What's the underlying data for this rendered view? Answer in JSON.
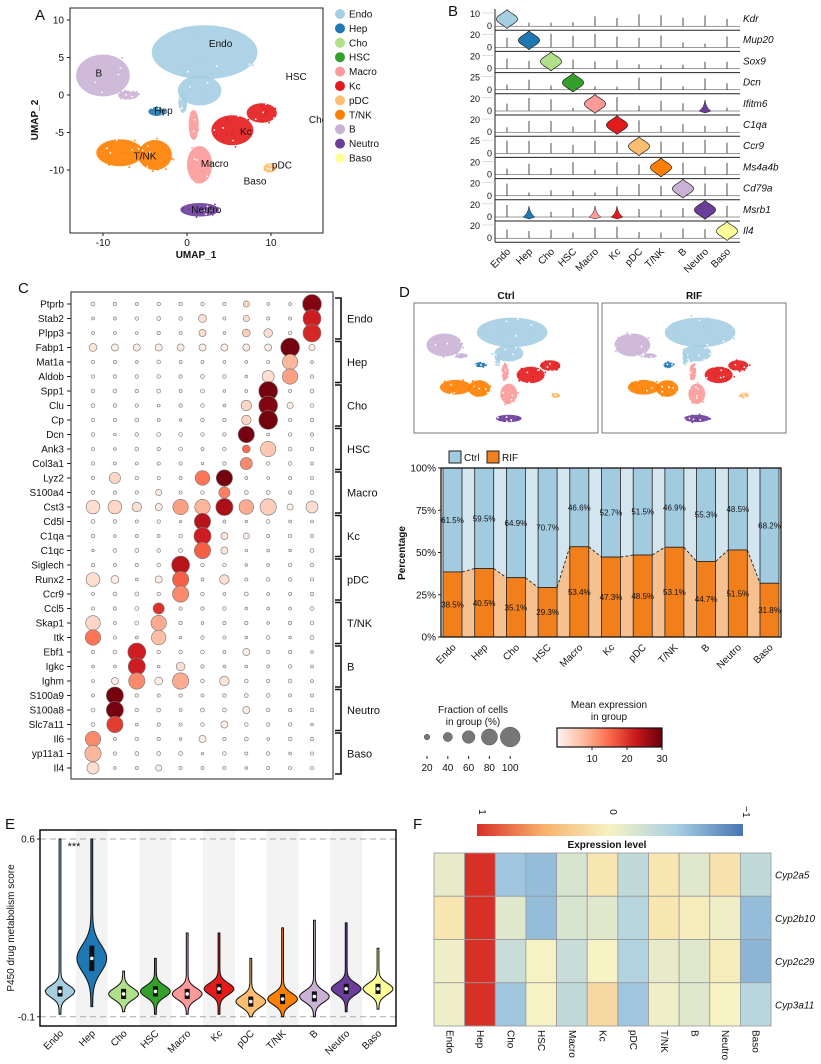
{
  "panel_labels": {
    "A": "A",
    "B": "B",
    "C": "C",
    "D": "D",
    "E": "E",
    "F": "F"
  },
  "cell_types": [
    "Endo",
    "Hep",
    "Cho",
    "HSC",
    "Macro",
    "Kc",
    "pDC",
    "T/NK",
    "B",
    "Neutro",
    "Baso"
  ],
  "colors": {
    "Endo": "#a6cee3",
    "Hep": "#1f78b4",
    "Cho": "#b2df8a",
    "HSC": "#33a02c",
    "Macro": "#fb9a99",
    "Kc": "#e31a1c",
    "pDC": "#fdbf6f",
    "T/NK": "#ff7f00",
    "B": "#cab2d6",
    "Neutro": "#6a3d9a",
    "Baso": "#ffff99",
    "ctrl": "#a3cbe0",
    "ctrl_light": "#d3e6ef",
    "rif": "#f07f1c",
    "rif_light": "#f6c08f"
  },
  "chart_data": [
    {
      "panel": "A",
      "type": "scatter",
      "xlabel": "UMAP_1",
      "ylabel": "UMAP_2",
      "xticks": [
        -10,
        0,
        10
      ],
      "yticks": [
        10,
        5,
        0,
        -5,
        -10
      ],
      "xlim": [
        -14,
        16.2
      ],
      "ylim": [
        -18.4,
        11.6
      ],
      "legend": [
        "Endo",
        "Hep",
        "Cho",
        "HSC",
        "Macro",
        "Kc",
        "pDC",
        "T/NK",
        "B",
        "Neutro",
        "Baso"
      ],
      "legend_position": "right",
      "clusters": [
        {
          "name": "Endo",
          "blobs": [
            [
              2.1,
              5.7,
              6.3,
              3.6
            ],
            [
              1.5,
              0.6,
              2.6,
              2.0
            ],
            [
              -0.5,
              -1,
              0.5,
              1.4
            ]
          ]
        },
        {
          "name": "B",
          "blobs": [
            [
              -10,
              2.6,
              3.2,
              2.8
            ],
            [
              -7,
              0,
              1.2,
              0.6
            ]
          ]
        },
        {
          "name": "Hep",
          "blobs": [
            [
              -3.6,
              -2.2,
              1.0,
              0.6
            ]
          ]
        },
        {
          "name": "Kc",
          "blobs": [
            [
              5.4,
              -4.7,
              2.5,
              2.0
            ],
            [
              8.9,
              -2.4,
              1.8,
              1.3
            ]
          ]
        },
        {
          "name": "T/NK",
          "blobs": [
            [
              -8,
              -7.7,
              2.8,
              1.8
            ],
            [
              -3.8,
              -8,
              2.0,
              2.0
            ]
          ]
        },
        {
          "name": "Macro",
          "blobs": [
            [
              1.5,
              -9.3,
              1.5,
              2.5
            ],
            [
              0.8,
              -4,
              0.6,
              2.0
            ]
          ]
        },
        {
          "name": "pDC",
          "blobs": [
            [
              9.9,
              -9.7,
              0.8,
              0.6
            ]
          ]
        },
        {
          "name": "Neutro",
          "blobs": [
            [
              1.5,
              -15.3,
              2.3,
              0.9
            ]
          ]
        }
      ],
      "cluster_labels": [
        {
          "text": "Endo",
          "x": 4,
          "y": 6.4
        },
        {
          "text": "B",
          "x": -10.5,
          "y": 2.5
        },
        {
          "text": "Hep",
          "x": -2.8,
          "y": -2.5
        },
        {
          "text": "HSC",
          "x": 13,
          "y": 2
        },
        {
          "text": "Kc",
          "x": 7,
          "y": -5.3
        },
        {
          "text": "Cho",
          "x": 15.6,
          "y": -3.7
        },
        {
          "text": "T/NK",
          "x": -5,
          "y": -8.6
        },
        {
          "text": "Macro",
          "x": 3.3,
          "y": -9.6
        },
        {
          "text": "pDC",
          "x": 11.3,
          "y": -9.8
        },
        {
          "text": "Baso",
          "x": 8.1,
          "y": -11.9
        },
        {
          "text": "Neutro",
          "x": 2.3,
          "y": -15.7
        }
      ]
    },
    {
      "panel": "B",
      "type": "stacked-violin",
      "categories": [
        "Endo",
        "Hep",
        "Cho",
        "HSC",
        "Macro",
        "Kc",
        "pDC",
        "T/NK",
        "B",
        "Neutro",
        "Baso"
      ],
      "genes": [
        {
          "gene": "Kdr",
          "ytick_top": "10",
          "ytick_zero": "0",
          "main": "Endo",
          "others": []
        },
        {
          "gene": "Mup20",
          "ytick_top": "20",
          "ytick_zero": "0",
          "main": "Hep",
          "others": []
        },
        {
          "gene": "Sox9",
          "ytick_top": "20",
          "ytick_zero": "0",
          "main": "Cho",
          "others": []
        },
        {
          "gene": "Dcn",
          "ytick_top": "25",
          "ytick_zero": "0",
          "main": "HSC",
          "others": []
        },
        {
          "gene": "Ifitm6",
          "ytick_top": "20",
          "ytick_zero": "0",
          "main": "Macro",
          "others": [
            "Neutro"
          ]
        },
        {
          "gene": "C1qa",
          "ytick_top": "20",
          "ytick_zero": "0",
          "main": "Kc",
          "others": []
        },
        {
          "gene": "Ccr9",
          "ytick_top": "25",
          "ytick_zero": "0",
          "main": "pDC",
          "others": []
        },
        {
          "gene": "Ms4a4b",
          "ytick_top": "20",
          "ytick_zero": "0",
          "main": "T/NK",
          "others": []
        },
        {
          "gene": "Cd79a",
          "ytick_top": "20",
          "ytick_zero": "0",
          "main": "B",
          "others": []
        },
        {
          "gene": "Msrb1",
          "ytick_top": "20",
          "ytick_zero": "0",
          "main": "Neutro",
          "others": [
            "Hep",
            "Macro",
            "Kc"
          ]
        },
        {
          "gene": "Il4",
          "ytick_top": "20",
          "ytick_zero": "0",
          "main": "Baso",
          "others": []
        }
      ]
    },
    {
      "panel": "C",
      "type": "dotplot",
      "genes": [
        "Ptprb",
        "Stab2",
        "Plpp3",
        "Fabp1",
        "Mat1a",
        "Aldob",
        "Spp1",
        "Clu",
        "Cp",
        "Dcn",
        "Ank3",
        "Col3a1",
        "Lyz2",
        "S100a4",
        "Cst3",
        "Cd5l",
        "C1qa",
        "C1qc",
        "Siglech",
        "Runx2",
        "Ccr9",
        "Ccl5",
        "Skap1",
        "Itk",
        "Ebf1",
        "Igkc",
        "Ighm",
        "S100a9",
        "S100a8",
        "Slc7a11",
        "Il6",
        "yp11a1",
        "Il4"
      ],
      "groups": [
        "Endo",
        "Hep",
        "Cho",
        "HSC",
        "Macro",
        "Kc",
        "pDC",
        "T/NK",
        "B",
        "Neutro",
        "Baso"
      ],
      "n_columns": 11,
      "default_dot": {
        "fraction": 10,
        "expression": 1
      },
      "dots": {
        "Ptprb": [
          [
            10,
            100,
            28
          ],
          [
            7,
            25,
            4
          ]
        ],
        "Stab2": [
          [
            10,
            95,
            22
          ],
          [
            5,
            35,
            3
          ],
          [
            7,
            25,
            3
          ]
        ],
        "Plpp3": [
          [
            10,
            95,
            21
          ],
          [
            5,
            30,
            3
          ],
          [
            7,
            35,
            5
          ],
          [
            8,
            40,
            3
          ]
        ],
        "Fabp1": [
          [
            9,
            100,
            29
          ],
          [
            0,
            35,
            2
          ],
          [
            1,
            30,
            1
          ],
          [
            2,
            30,
            1
          ],
          [
            3,
            30,
            1
          ],
          [
            4,
            30,
            1
          ],
          [
            5,
            30,
            1
          ],
          [
            6,
            30,
            1
          ],
          [
            7,
            30,
            1
          ],
          [
            8,
            30,
            1
          ],
          [
            10,
            25,
            1
          ]
        ],
        "Mat1a": [
          [
            9,
            80,
            8
          ]
        ],
        "Aldob": [
          [
            9,
            80,
            10
          ],
          [
            8,
            60,
            3
          ]
        ],
        "Spp1": [
          [
            8,
            100,
            29
          ]
        ],
        "Clu": [
          [
            8,
            100,
            28
          ],
          [
            7,
            50,
            4
          ],
          [
            9,
            25,
            1
          ]
        ],
        "Cp": [
          [
            8,
            100,
            29
          ],
          [
            7,
            45,
            4
          ]
        ],
        "Dcn": [
          [
            7,
            85,
            29
          ]
        ],
        "Ank3": [
          [
            7,
            35,
            15
          ],
          [
            8,
            80,
            6
          ]
        ],
        "Col3a1": [
          [
            7,
            60,
            12
          ]
        ],
        "Lyz2": [
          [
            6,
            85,
            29
          ],
          [
            5,
            75,
            14
          ],
          [
            1,
            55,
            4
          ]
        ],
        "S100a4": [
          [
            6,
            55,
            13
          ],
          [
            3,
            25,
            1
          ]
        ],
        "Cst3": [
          [
            6,
            90,
            25
          ],
          [
            5,
            80,
            8
          ],
          [
            4,
            80,
            10
          ],
          [
            7,
            75,
            9
          ],
          [
            8,
            85,
            5
          ],
          [
            0,
            70,
            3
          ],
          [
            1,
            70,
            4
          ],
          [
            2,
            45,
            3
          ],
          [
            10,
            60,
            3
          ],
          [
            3,
            30,
            1
          ],
          [
            9,
            25,
            1
          ]
        ],
        "Cd5l": [
          [
            5,
            85,
            24
          ]
        ],
        "C1qa": [
          [
            5,
            90,
            22
          ],
          [
            6,
            30,
            2
          ],
          [
            7,
            25,
            1
          ]
        ],
        "C1qc": [
          [
            5,
            85,
            16
          ],
          [
            6,
            30,
            2
          ]
        ],
        "Siglech": [
          [
            4,
            95,
            24
          ]
        ],
        "Runx2": [
          [
            4,
            85,
            16
          ],
          [
            0,
            70,
            3
          ],
          [
            1,
            35,
            1
          ],
          [
            6,
            45,
            3
          ],
          [
            3,
            30,
            1
          ]
        ],
        "Ccr9": [
          [
            4,
            85,
            12
          ]
        ],
        "Ccl5": [
          [
            3,
            55,
            20
          ]
        ],
        "Skap1": [
          [
            3,
            80,
            9
          ],
          [
            0,
            75,
            4
          ]
        ],
        "Itk": [
          [
            3,
            75,
            7
          ],
          [
            0,
            80,
            14
          ]
        ],
        "Ebf1": [
          [
            2,
            95,
            22
          ],
          [
            7,
            30,
            1
          ]
        ],
        "Igkc": [
          [
            2,
            90,
            22
          ],
          [
            4,
            40,
            3
          ]
        ],
        "Ighm": [
          [
            2,
            85,
            12
          ],
          [
            4,
            85,
            9
          ],
          [
            6,
            45,
            2
          ],
          [
            3,
            35,
            1
          ],
          [
            1,
            30,
            1
          ]
        ],
        "S100a9": [
          [
            1,
            90,
            29
          ]
        ],
        "S100a8": [
          [
            1,
            90,
            29
          ],
          [
            7,
            30,
            1
          ]
        ],
        "Slc7a11": [
          [
            1,
            85,
            19
          ],
          [
            6,
            30,
            1
          ]
        ],
        "Il6": [
          [
            0,
            80,
            12
          ],
          [
            5,
            30,
            1
          ]
        ],
        "yp11a1": [
          [
            0,
            85,
            8
          ]
        ],
        "Il4": [
          [
            0,
            60,
            3
          ],
          [
            3,
            25,
            1
          ]
        ]
      },
      "size_legend": {
        "title_line1": "Fraction of cells",
        "title_line2": "in group (%)",
        "values": [
          20,
          40,
          60,
          80,
          100
        ],
        "labels": [
          "20",
          "40",
          "60",
          "80",
          "100"
        ]
      },
      "color_legend": {
        "title_line1": "Mean expression",
        "title_line2": "in group",
        "range": [
          0,
          30
        ],
        "ticks": [
          10,
          20,
          30
        ],
        "labels": [
          "10",
          "20",
          "30"
        ]
      }
    },
    {
      "panel": "D-umap",
      "type": "scatter",
      "titles": [
        "Ctrl",
        "RIF"
      ]
    },
    {
      "panel": "D",
      "type": "bar",
      "stacked": true,
      "categories": [
        "Endo",
        "Hep",
        "Cho",
        "HSC",
        "Macro",
        "Kc",
        "pDC",
        "T/NK",
        "B",
        "Neutro",
        "Baso"
      ],
      "ylabel": "Percentage",
      "yticks": [
        "0%",
        "25%",
        "50%",
        "75%",
        "100%"
      ],
      "ylim": [
        0,
        100
      ],
      "legend_position": "top-left",
      "series": [
        {
          "name": "Ctrl",
          "values": [
            61.5,
            59.5,
            64.9,
            70.7,
            46.6,
            52.7,
            51.5,
            46.9,
            55.3,
            48.5,
            68.2
          ],
          "labels": [
            "61.5%",
            "59.5%",
            "64.9%",
            "70.7%",
            "46.6%",
            "52.7%",
            "51.5%",
            "46.9%",
            "55.3%",
            "48.5%",
            "68.2%"
          ]
        },
        {
          "name": "RIF",
          "values": [
            38.5,
            40.5,
            35.1,
            29.3,
            53.4,
            47.3,
            48.5,
            53.1,
            44.7,
            51.5,
            31.8
          ],
          "labels": [
            "38.5%",
            "40.5%",
            "35.1%",
            "29.3%",
            "53.4%",
            "47.3%",
            "48.5%",
            "53.1%",
            "44.7%",
            "51.5%",
            "31.8%"
          ]
        }
      ]
    },
    {
      "panel": "E",
      "type": "violin",
      "categories": [
        "Endo",
        "Hep",
        "Cho",
        "HSC",
        "Macro",
        "Kc",
        "pDC",
        "T/NK",
        "B",
        "Neutro",
        "Baso"
      ],
      "ylabel": "P450 drug metabolism score",
      "yticks": [
        0.6,
        -0.1
      ],
      "ytick_labels": [
        "0.6",
        "-0.1"
      ],
      "ylim": [
        -0.135,
        0.635
      ],
      "median": [
        0.0,
        0.13,
        -0.01,
        0.0,
        -0.01,
        0.01,
        -0.04,
        -0.03,
        -0.02,
        0.01,
        0.01
      ],
      "max": [
        0.6,
        0.6,
        0.08,
        0.13,
        0.23,
        0.23,
        0.13,
        0.25,
        0.28,
        0.27,
        0.17
      ],
      "min": [
        -0.09,
        -0.06,
        -0.08,
        -0.09,
        -0.09,
        -0.09,
        -0.1,
        -0.1,
        -0.1,
        -0.08,
        -0.07
      ],
      "annotation": "***",
      "reference_lines": [
        0.6,
        -0.1
      ]
    },
    {
      "panel": "F",
      "type": "heatmap",
      "columns": [
        "Endo",
        "Hep",
        "Cho",
        "HSC",
        "Macro",
        "Kc",
        "pDC",
        "T/NK",
        "B",
        "Neutro",
        "Baso"
      ],
      "rows": [
        "Cyp2a5",
        "Cyp2b10",
        "Cyp2c29",
        "Cyp3a11"
      ],
      "values": [
        [
          -0.1,
          1,
          -0.55,
          -0.6,
          -0.2,
          0.1,
          -0.35,
          0.1,
          -0.15,
          0.12,
          -0.35
        ],
        [
          0.1,
          1,
          -0.15,
          -0.6,
          -0.2,
          -0.15,
          -0.4,
          0.1,
          0.05,
          -0.05,
          -0.6
        ],
        [
          -0.05,
          1,
          -0.3,
          0.0,
          -0.3,
          0.0,
          -0.45,
          -0.1,
          -0.15,
          0.05,
          -0.65
        ],
        [
          -0.05,
          1,
          -0.55,
          0.0,
          -0.35,
          0.2,
          -0.55,
          -0.05,
          -0.15,
          0.0,
          -0.4
        ]
      ],
      "colorbar": {
        "title": "Expression level",
        "range": [
          1,
          -1
        ],
        "tick_labels": [
          "1",
          "0",
          "−1"
        ]
      }
    }
  ]
}
